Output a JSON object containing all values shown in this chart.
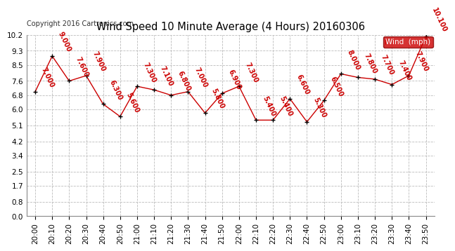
{
  "title": "Wind Speed 10 Minute Average (4 Hours) 20160306",
  "copyright": "Copyright 2016 Cartronics.com",
  "legend_label": "Wind  (mph)",
  "x_labels": [
    "20:00",
    "20:10",
    "20:20",
    "20:30",
    "20:40",
    "20:50",
    "21:00",
    "21:10",
    "21:20",
    "21:30",
    "21:40",
    "21:50",
    "22:00",
    "22:10",
    "22:20",
    "22:30",
    "22:40",
    "22:50",
    "23:00",
    "23:10",
    "23:20",
    "23:30",
    "23:40",
    "23:50"
  ],
  "y_values": [
    7.0,
    9.0,
    7.6,
    7.9,
    6.3,
    5.6,
    7.3,
    7.1,
    6.8,
    7.0,
    5.8,
    6.9,
    7.3,
    5.4,
    5.4,
    6.6,
    5.3,
    6.5,
    8.0,
    7.8,
    7.7,
    7.4,
    7.9,
    10.1
  ],
  "point_labels": [
    "7.000",
    "9.000",
    "7.600",
    "7.900",
    "6.300",
    "5.600",
    "7.300",
    "7.100",
    "6.800",
    "7.000",
    "5.800",
    "6.900",
    "7.300",
    "5.400",
    "5.400",
    "6.600",
    "5.300",
    "6.500",
    "8.000",
    "7.800",
    "7.700",
    "7.400",
    "7.900",
    "10.100"
  ],
  "ylim": [
    0.0,
    10.2
  ],
  "yticks": [
    0.0,
    0.8,
    1.7,
    2.5,
    3.4,
    4.2,
    5.1,
    6.0,
    6.8,
    7.6,
    8.5,
    9.3,
    10.2
  ],
  "line_color": "#cc0000",
  "marker_color": "#000000",
  "background_color": "#ffffff",
  "grid_color": "#bbbbbb",
  "legend_bg": "#cc0000",
  "legend_text_color": "#ffffff",
  "title_fontsize": 10.5,
  "label_fontsize": 7,
  "tick_fontsize": 7.5,
  "copyright_fontsize": 7
}
